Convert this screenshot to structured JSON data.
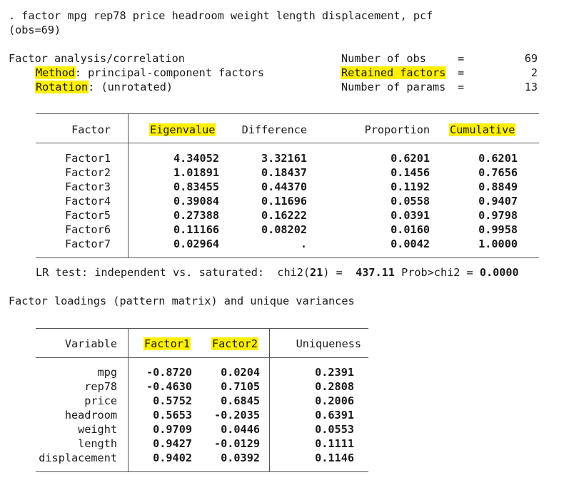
{
  "command": ". factor mpg rep78 price headroom weight length displacement, pcf",
  "obs": "(obs=69)",
  "header": {
    "title": "Factor analysis/correlation",
    "method_label": "Method",
    "method_value": ": principal-component factors",
    "rotation_label": "Rotation",
    "rotation_value": ": (unrotated)",
    "nobs_label": "Number of obs",
    "nobs_value": "69",
    "retained_label": "Retained factors",
    "retained_value": "2",
    "nparams_label": "Number of params",
    "nparams_value": "13",
    "eq": "="
  },
  "eigen_table": {
    "headers": [
      "Factor",
      "Eigenvalue",
      "Difference",
      "Proportion",
      "Cumulative"
    ],
    "rows": [
      [
        "Factor1",
        "4.34052",
        "3.32161",
        "0.6201",
        "0.6201"
      ],
      [
        "Factor2",
        "1.01891",
        "0.18437",
        "0.1456",
        "0.7656"
      ],
      [
        "Factor3",
        "0.83455",
        "0.44370",
        "0.1192",
        "0.8849"
      ],
      [
        "Factor4",
        "0.39084",
        "0.11696",
        "0.0558",
        "0.9407"
      ],
      [
        "Factor5",
        "0.27388",
        "0.16222",
        "0.0391",
        "0.9798"
      ],
      [
        "Factor6",
        "0.11166",
        "0.08202",
        "0.0160",
        "0.9958"
      ],
      [
        "Factor7",
        "0.02964",
        ".",
        "0.0042",
        "1.0000"
      ]
    ]
  },
  "lr_test": {
    "label": "LR test: independent vs. saturated:  chi2(",
    "df": "21",
    "mid": ") =  ",
    "chi2": "437.11",
    "prob_label": " Prob>chi2 = ",
    "prob": "0.0000"
  },
  "loadings_title": "Factor loadings (pattern matrix) and unique variances",
  "loadings_table": {
    "headers": [
      "Variable",
      "Factor1",
      "Factor2",
      "Uniqueness"
    ],
    "rows": [
      [
        "mpg",
        "-0.8720",
        "0.0204",
        "0.2391"
      ],
      [
        "rep78",
        "-0.4630",
        "0.7105",
        "0.2808"
      ],
      [
        "price",
        "0.5752",
        "0.6845",
        "0.2006"
      ],
      [
        "headroom",
        "0.5653",
        "-0.2035",
        "0.6391"
      ],
      [
        "weight",
        "0.9709",
        "0.0446",
        "0.0553"
      ],
      [
        "length",
        "0.9427",
        "-0.0129",
        "0.1111"
      ],
      [
        "displacement",
        "0.9402",
        "0.0392",
        "0.1146"
      ]
    ]
  },
  "colors": {
    "highlight": "#fff000",
    "text": "#1a1a1a",
    "rule": "#555555"
  }
}
